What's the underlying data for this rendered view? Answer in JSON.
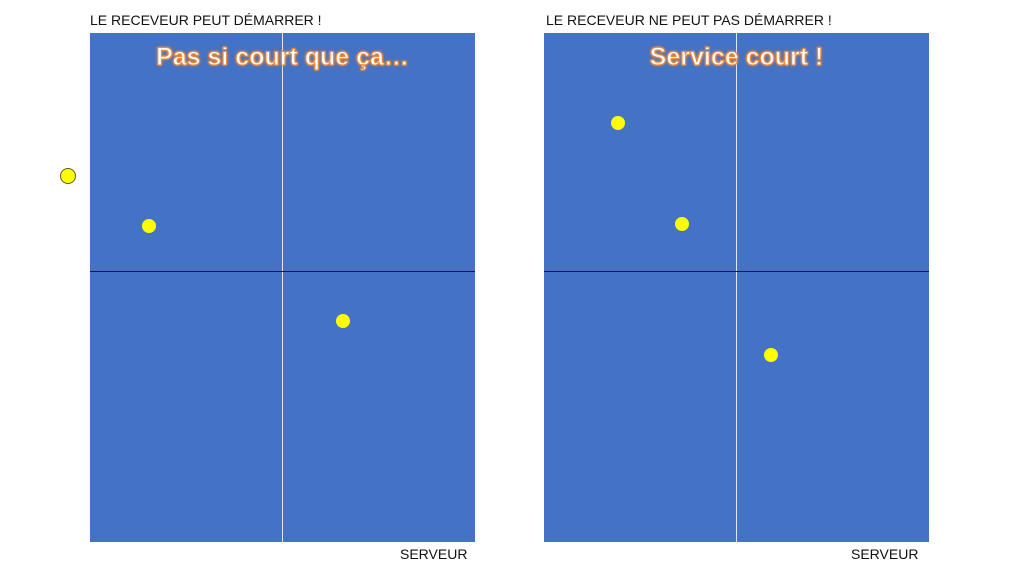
{
  "panels": [
    {
      "caption": "LE RECEVEUR PEUT DÉMARRER !",
      "title": "Pas si court que ça…",
      "footer_label": "SERVEUR",
      "court_color": "#4472C4",
      "ball_color": "#FFFF00"
    },
    {
      "caption": "LE RECEVEUR NE PEUT PAS DÉMARRER !",
      "title": "Service court !",
      "footer_label": "SERVEUR",
      "court_color": "#4472C4",
      "ball_color": "#FFFF00"
    }
  ]
}
